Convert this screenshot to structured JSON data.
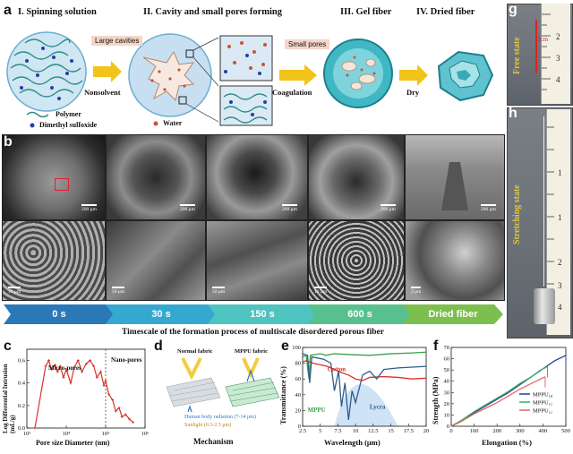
{
  "panel_a": {
    "label": "a",
    "steps": [
      "I. Spinning solution",
      "II. Cavity and small pores forming",
      "III. Gel fiber",
      "IV. Dried fiber"
    ],
    "callouts": {
      "large_cavities": "Large cavities",
      "small_pores": "Small pores"
    },
    "arrows": [
      "Nonsolvent",
      "Coagulation",
      "Dry"
    ],
    "legend": {
      "polymer": "Polymer",
      "dmso": "Dimethyl sulfoxide",
      "water": "Water"
    }
  },
  "panel_b": {
    "label": "b",
    "top_scales": [
      "200 μm",
      "200 μm",
      "200 μm",
      "200 μm",
      "200 μm"
    ],
    "bottom_scales": [
      "10 μm",
      "50 μm",
      "50 μm",
      "10 μm",
      "2 μm"
    ],
    "timeline": [
      "0 s",
      "30 s",
      "150 s",
      "600 s",
      "Dried fiber"
    ],
    "caption": "Timescale of the formation process of multiscale disordered porous fiber"
  },
  "panel_g": {
    "label": "g",
    "state": "Free state",
    "scale": "3cm"
  },
  "panel_h": {
    "label": "h",
    "state": "Stretching state"
  },
  "panel_c": {
    "label": "c",
    "region_labels": [
      "Micro-pores",
      "Nano-pores"
    ],
    "chart_data": {
      "type": "line",
      "xlabel": "Pore size Diameter (nm)",
      "ylabel": "Log Differential Intrusion (mL/g)",
      "xscale": "log",
      "xlim": [
        1000,
        1000000
      ],
      "ylim": [
        0.0,
        0.7
      ],
      "x_ticks": [
        "10³",
        "10⁴",
        "10⁵",
        "10⁶"
      ],
      "y_ticks": [
        "0.0",
        "0.2",
        "0.4",
        "0.6"
      ],
      "points": [
        [
          1600,
          0.0
        ],
        [
          3000,
          0.55
        ],
        [
          3600,
          0.6
        ],
        [
          4200,
          0.52
        ],
        [
          5200,
          0.56
        ],
        [
          6000,
          0.5
        ],
        [
          7000,
          0.55
        ],
        [
          8500,
          0.45
        ],
        [
          10000,
          0.52
        ],
        [
          13000,
          0.4
        ],
        [
          16000,
          0.54
        ],
        [
          20000,
          0.6
        ],
        [
          25000,
          0.5
        ],
        [
          32000,
          0.57
        ],
        [
          40000,
          0.6
        ],
        [
          50000,
          0.55
        ],
        [
          60000,
          0.45
        ],
        [
          75000,
          0.5
        ],
        [
          90000,
          0.38
        ],
        [
          100000,
          0.42
        ],
        [
          120000,
          0.3
        ],
        [
          150000,
          0.25
        ],
        [
          180000,
          0.15
        ],
        [
          220000,
          0.18
        ],
        [
          260000,
          0.1
        ],
        [
          320000,
          0.12
        ],
        [
          400000,
          0.08
        ],
        [
          500000,
          0.05
        ]
      ]
    }
  },
  "panel_d": {
    "label": "d",
    "fabrics": [
      "Normal fabric",
      "MPPU fabric"
    ],
    "legend": [
      "Human body radiation (7-14 μm)",
      "Sunlight (0.3-2.5 μm)"
    ],
    "title": "Mechanism"
  },
  "panel_e": {
    "label": "e",
    "chart_data": {
      "type": "line",
      "xlabel": "Wavelength (μm)",
      "ylabel": "Transmittance (%)",
      "xlim": [
        2.5,
        20
      ],
      "ylim": [
        0,
        100
      ],
      "x_ticks": [
        "2.5",
        "5",
        "7.5",
        "10",
        "12.5",
        "15",
        "17.5",
        "20"
      ],
      "y_ticks": [
        "0",
        "20",
        "40",
        "60",
        "80",
        "100"
      ],
      "series": [
        {
          "name": "MPPU",
          "color": "#3aa14a",
          "points": [
            [
              2.5,
              88
            ],
            [
              3,
              90
            ],
            [
              3.4,
              60
            ],
            [
              3.6,
              90
            ],
            [
              5,
              92
            ],
            [
              5.8,
              90
            ],
            [
              7,
              92
            ],
            [
              9,
              91
            ],
            [
              12,
              90
            ],
            [
              15,
              92
            ],
            [
              18,
              93
            ],
            [
              20,
              94
            ]
          ]
        },
        {
          "name": "Cotton",
          "color": "#d9342b",
          "points": [
            [
              2.5,
              82
            ],
            [
              3,
              83
            ],
            [
              4,
              80
            ],
            [
              5,
              78
            ],
            [
              6,
              76
            ],
            [
              7,
              72
            ],
            [
              8,
              68
            ],
            [
              9,
              65
            ],
            [
              10,
              60
            ],
            [
              11,
              58
            ],
            [
              12,
              62
            ],
            [
              14,
              63
            ],
            [
              16,
              62
            ],
            [
              18,
              60
            ],
            [
              20,
              61
            ]
          ]
        },
        {
          "name": "Lycra",
          "color": "#2f5d8a",
          "points": [
            [
              2.5,
              92
            ],
            [
              3.2,
              90
            ],
            [
              3.5,
              55
            ],
            [
              3.8,
              88
            ],
            [
              5.5,
              85
            ],
            [
              6.5,
              80
            ],
            [
              7,
              45
            ],
            [
              7.6,
              70
            ],
            [
              8,
              25
            ],
            [
              8.5,
              55
            ],
            [
              9,
              8
            ],
            [
              9.5,
              45
            ],
            [
              10,
              30
            ],
            [
              11,
              65
            ],
            [
              12,
              70
            ],
            [
              13,
              60
            ],
            [
              14,
              72
            ],
            [
              16,
              74
            ],
            [
              18,
              75
            ],
            [
              20,
              76
            ]
          ]
        }
      ]
    }
  },
  "panel_f": {
    "label": "f",
    "chart_data": {
      "type": "line",
      "xlabel": "Elongation (%)",
      "ylabel": "Strength (MPa)",
      "xlim": [
        0,
        500
      ],
      "ylim": [
        0,
        70
      ],
      "x_ticks": [
        "0",
        "100",
        "200",
        "300",
        "400",
        "500"
      ],
      "y_ticks": [
        "0",
        "10",
        "20",
        "30",
        "40",
        "50",
        "60",
        "70"
      ],
      "series": [
        {
          "name": "MPPU₁₈",
          "color": "#2a3f8f",
          "points": [
            [
              0,
              0
            ],
            [
              50,
              5
            ],
            [
              100,
              12
            ],
            [
              150,
              18
            ],
            [
              200,
              24
            ],
            [
              250,
              30
            ],
            [
              300,
              37
            ],
            [
              350,
              44
            ],
            [
              400,
              51
            ],
            [
              450,
              58
            ],
            [
              500,
              63
            ]
          ]
        },
        {
          "name": "MPPU₁₅",
          "color": "#3fae6a",
          "points": [
            [
              0,
              0
            ],
            [
              50,
              6
            ],
            [
              100,
              13
            ],
            [
              150,
              19
            ],
            [
              200,
              25
            ],
            [
              250,
              31
            ],
            [
              300,
              38
            ],
            [
              350,
              44
            ],
            [
              390,
              50
            ],
            [
              420,
              53
            ]
          ]
        },
        {
          "name": "MPPU₁₂",
          "color": "#e06a6a",
          "points": [
            [
              0,
              0
            ],
            [
              50,
              5
            ],
            [
              100,
              11
            ],
            [
              150,
              16
            ],
            [
              200,
              21
            ],
            [
              250,
              27
            ],
            [
              300,
              33
            ],
            [
              350,
              38
            ],
            [
              390,
              42
            ],
            [
              410,
              44
            ]
          ]
        }
      ]
    }
  }
}
